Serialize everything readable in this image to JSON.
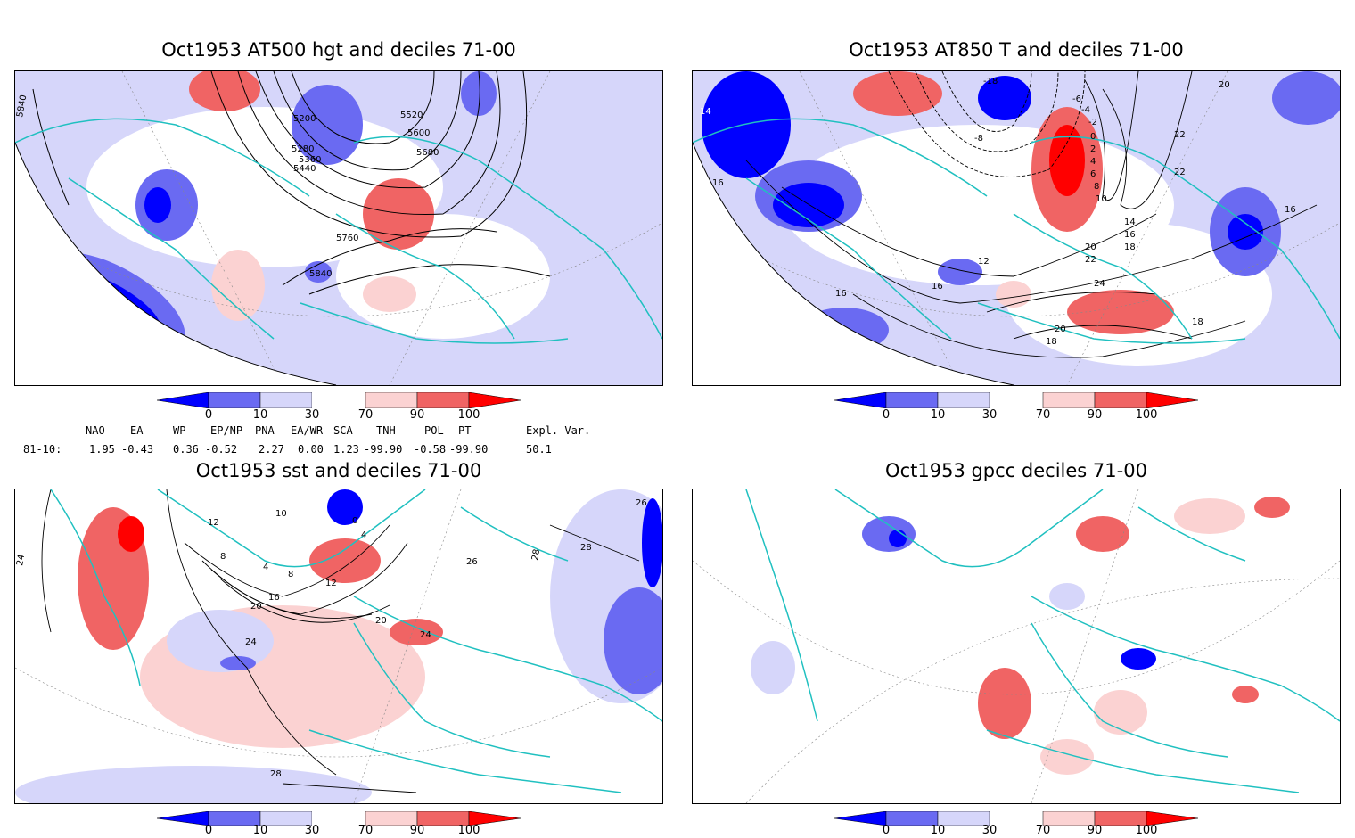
{
  "panels": [
    {
      "title": "Oct1953 AT500 hgt and deciles 71-00",
      "contour_labels": [
        "5840",
        "5200",
        "5520",
        "5600",
        "5280",
        "5360",
        "5440",
        "5680",
        "5760",
        "5840"
      ]
    },
    {
      "title": "Oct1953 AT850 T and deciles 71-00",
      "contour_labels": [
        "14",
        "16",
        "-18",
        "-8",
        "-6",
        "-4",
        "-2",
        "0",
        "2",
        "4",
        "6",
        "8",
        "10",
        "12",
        "14",
        "16",
        "18",
        "20",
        "22",
        "24",
        "20",
        "18",
        "16",
        "16",
        "22",
        "22",
        "20",
        "16",
        "18"
      ]
    },
    {
      "title": "Oct1953 sst and deciles 71-00",
      "contour_labels": [
        "24",
        "26",
        "12",
        "10",
        "8",
        "4",
        "0",
        "4",
        "12",
        "8",
        "16",
        "20",
        "24",
        "28",
        "20",
        "24",
        "28",
        "26",
        "28"
      ]
    },
    {
      "title": "Oct1953 gpcc deciles 71-00",
      "contour_labels": []
    }
  ],
  "colorbar": {
    "ticks": [
      "0",
      "10",
      "30",
      "70",
      "90",
      "100"
    ],
    "colors": [
      "#0000ff",
      "#6a6af2",
      "#d6d6fa",
      "#ffffff",
      "#fbd2d2",
      "#f06464",
      "#ff0000"
    ]
  },
  "indices": {
    "header": [
      "NAO",
      "EA",
      "WP",
      "EP/NP",
      "PNA",
      "EA/WR",
      "SCA",
      "TNH",
      "POL",
      "PT",
      "Expl. Var."
    ],
    "row_label": "81-10:",
    "values": [
      "1.95",
      "-0.43",
      "0.36",
      "-0.52",
      "2.27",
      "0.00",
      "1.23",
      "-99.90",
      "-0.58",
      "-99.90",
      "50.1"
    ]
  },
  "colors": {
    "coastline": "#20c0c0",
    "contour": "#000000",
    "grid": "#888888"
  }
}
